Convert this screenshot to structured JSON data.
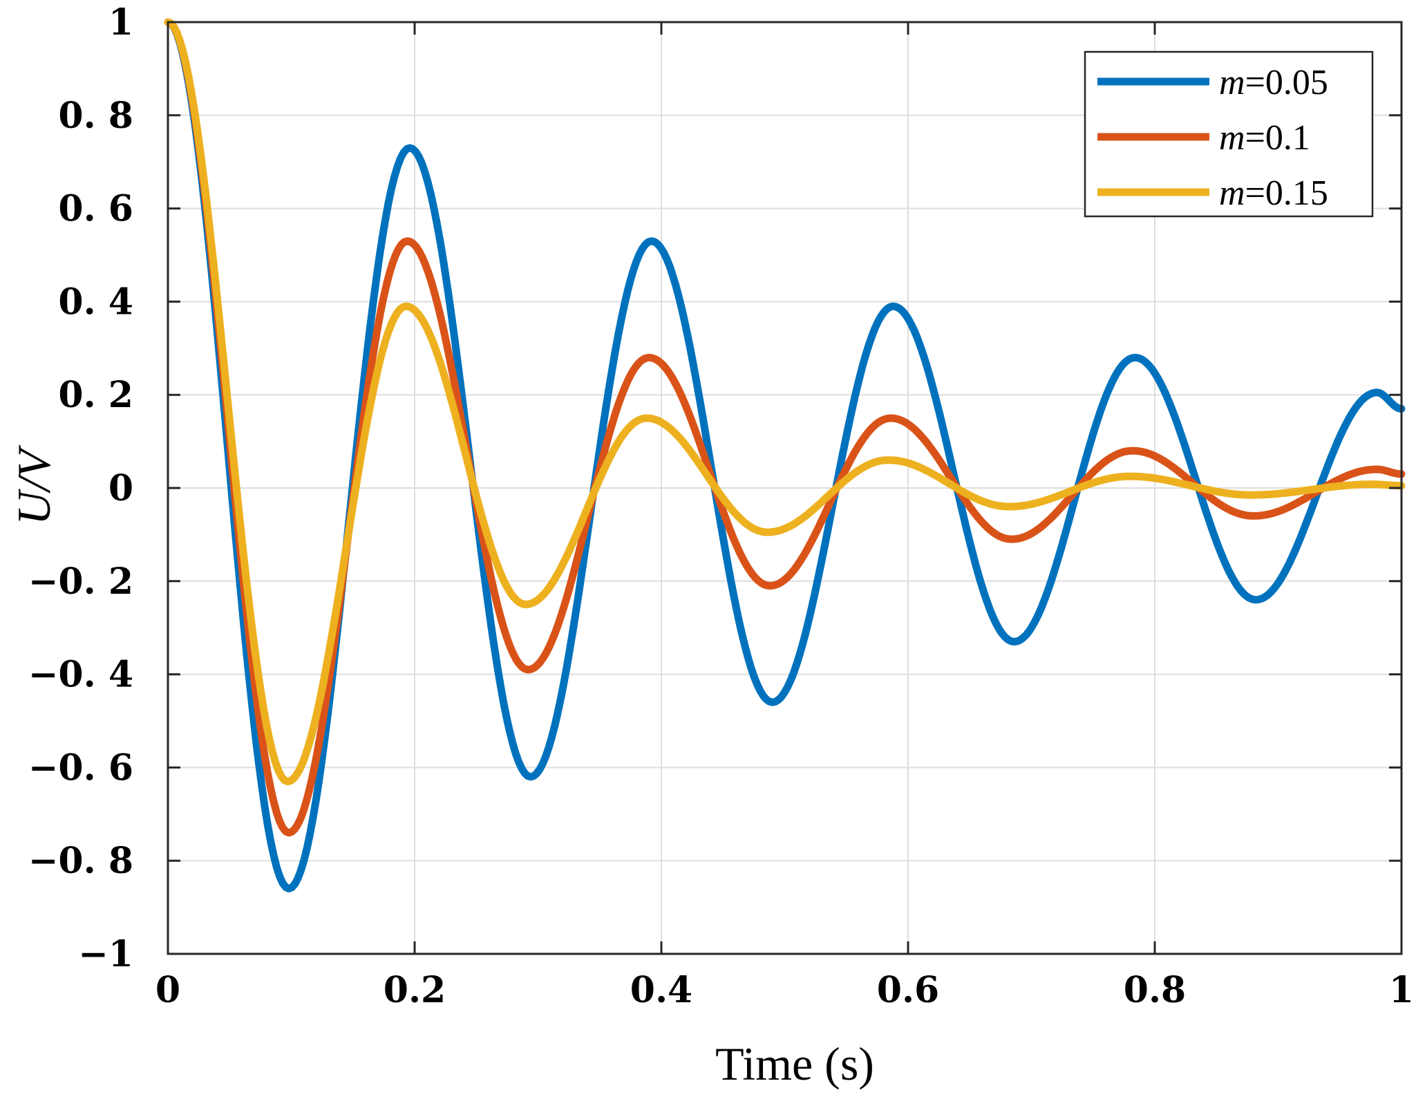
{
  "chart_data": {
    "type": "line",
    "title": "",
    "xlabel": "Time (s)",
    "ylabel": "U/V",
    "xlim": [
      0,
      1
    ],
    "ylim": [
      -1,
      1
    ],
    "grid": true,
    "legend_position": "top-right",
    "x_ticks": [
      0,
      0.2,
      0.4,
      0.6,
      0.8,
      1
    ],
    "x_tick_labels": [
      "0",
      "0.2",
      "0.4",
      "0.6",
      "0.8",
      "1"
    ],
    "y_ticks": [
      1,
      0.8,
      0.6,
      0.4,
      0.2,
      0,
      -0.2,
      -0.4,
      -0.6,
      -0.8,
      -1
    ],
    "y_tick_labels": [
      "1",
      "0. 8",
      "0. 6",
      "0. 4",
      "0. 2",
      "0",
      "−0. 2",
      "−0. 4",
      "−0. 6",
      "−0. 8",
      "−1"
    ],
    "series": [
      {
        "name": "m=0.05",
        "legend_var": "m",
        "legend_value": "=0.05",
        "color": "#0072BD",
        "x": [
          0,
          0.1,
          0.2,
          0.3,
          0.4,
          0.5,
          0.6,
          0.7,
          0.8,
          0.9,
          1.0
        ],
        "y": [
          1,
          -0.86,
          0.73,
          -0.62,
          0.53,
          -0.46,
          0.39,
          -0.33,
          0.28,
          -0.24,
          0.17
        ],
        "peak_x": [
          0,
          0.098,
          0.196,
          0.294,
          0.392,
          0.49,
          0.588,
          0.686,
          0.784,
          0.882,
          0.98,
          1.0
        ],
        "peak_y": [
          1,
          -0.86,
          0.73,
          -0.62,
          0.53,
          -0.46,
          0.39,
          -0.33,
          0.28,
          -0.24,
          0.205,
          0.17
        ]
      },
      {
        "name": "m=0.1",
        "legend_var": "m",
        "legend_value": "=0.1",
        "color": "#D95319",
        "x": [
          0,
          0.1,
          0.2,
          0.3,
          0.4,
          0.5,
          0.6,
          0.7,
          0.8,
          0.9,
          1.0
        ],
        "y": [
          1,
          -0.74,
          0.53,
          -0.39,
          0.28,
          -0.21,
          0.15,
          -0.11,
          0.08,
          -0.06,
          0.03
        ],
        "peak_x": [
          0,
          0.098,
          0.194,
          0.292,
          0.39,
          0.488,
          0.586,
          0.684,
          0.782,
          0.88,
          0.98,
          1.0
        ],
        "peak_y": [
          1,
          -0.74,
          0.53,
          -0.39,
          0.28,
          -0.21,
          0.15,
          -0.11,
          0.08,
          -0.06,
          0.04,
          0.03
        ]
      },
      {
        "name": "m=0.15",
        "legend_var": "m",
        "legend_value": "=0.15",
        "color": "#EDB120",
        "x": [
          0,
          0.1,
          0.2,
          0.3,
          0.4,
          0.5,
          0.6,
          0.7,
          0.8,
          0.9,
          1.0
        ],
        "y": [
          1,
          -0.63,
          0.39,
          -0.25,
          0.15,
          -0.09,
          0.06,
          -0.04,
          0.02,
          -0.015,
          0.005
        ],
        "peak_x": [
          0,
          0.097,
          0.193,
          0.29,
          0.388,
          0.486,
          0.584,
          0.682,
          0.78,
          0.878,
          0.976,
          1.0
        ],
        "peak_y": [
          1,
          -0.63,
          0.39,
          -0.25,
          0.15,
          -0.095,
          0.06,
          -0.04,
          0.025,
          -0.015,
          0.008,
          0.005
        ]
      }
    ]
  }
}
